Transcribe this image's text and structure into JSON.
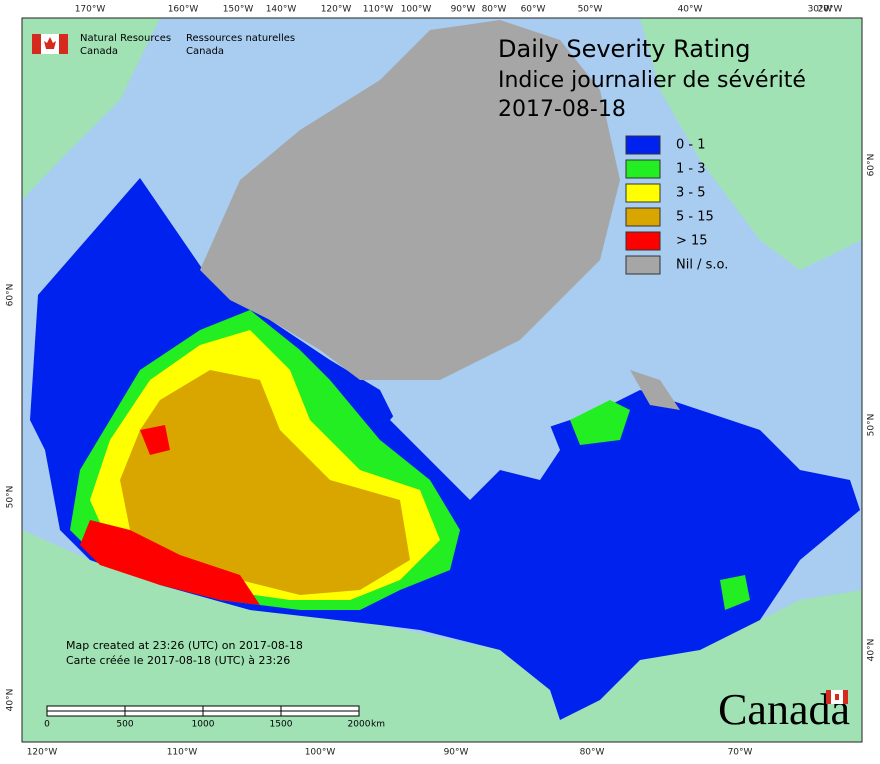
{
  "header": {
    "agency_en": [
      "Natural Resources",
      "Canada"
    ],
    "agency_fr": [
      "Ressources naturelles",
      "Canada"
    ]
  },
  "title": [
    "Daily Severity Rating",
    "Indice journalier de sévérité",
    "2017-08-18"
  ],
  "legend": [
    {
      "label": "0 - 1",
      "color": "#0022ee"
    },
    {
      "label": "1 - 3",
      "color": "#22ee22"
    },
    {
      "label": "3 - 5",
      "color": "#ffff00"
    },
    {
      "label": "5 - 15",
      "color": "#d9a600"
    },
    {
      "label": "> 15",
      "color": "#ff0000"
    },
    {
      "label": "Nil / s.o.",
      "color": "#a6a6a6"
    }
  ],
  "graticule": {
    "top": [
      "170°W",
      "160°W",
      "150°W",
      "140°W",
      "120°W",
      "110°W",
      "100°W",
      "90°W",
      "80°W",
      "60°W",
      "50°W",
      "40°W",
      "30°W",
      "20°W"
    ],
    "bottom": [
      "120°W",
      "110°W",
      "100°W",
      "90°W",
      "80°W",
      "70°W"
    ],
    "left": [
      "60°N",
      "50°N",
      "40°N"
    ],
    "right": [
      "60°N",
      "50°N",
      "40°N"
    ]
  },
  "credits": [
    "Map created at 23:26 (UTC) on 2017-08-18",
    "Carte créée le 2017-08-18 (UTC) à 23:26"
  ],
  "scale": {
    "labels": [
      "0",
      "500",
      "1000",
      "1500",
      "2000"
    ],
    "unit": "km"
  },
  "wordmark": "Canada"
}
